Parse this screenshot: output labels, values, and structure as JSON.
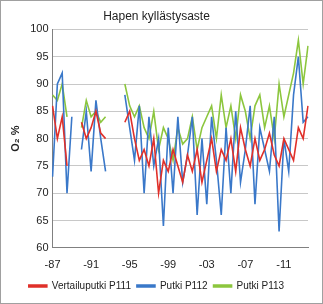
{
  "chart_data": {
    "type": "line",
    "title": "Hapen kyllästysaste",
    "y_label": "O₂ %",
    "categories": [
      "-87",
      null,
      null,
      null,
      null,
      null,
      null,
      null,
      "-91",
      null,
      null,
      null,
      null,
      null,
      null,
      null,
      "-95",
      null,
      null,
      null,
      null,
      null,
      null,
      null,
      "-99",
      null,
      null,
      null,
      null,
      null,
      null,
      null,
      "-03",
      null,
      null,
      null,
      null,
      null,
      null,
      null,
      "-07",
      null,
      null,
      null,
      null,
      null,
      null,
      null,
      "-11",
      null,
      null,
      null,
      null,
      null
    ],
    "series": [
      {
        "name": "Vertailuputki P111",
        "color": "#e0302a",
        "values": [
          86,
          80,
          84,
          75,
          null,
          null,
          83,
          80,
          82,
          85,
          81,
          80,
          null,
          null,
          null,
          83,
          85,
          80,
          76,
          78,
          75,
          80,
          70,
          76,
          74,
          78,
          75,
          72,
          77,
          74,
          78,
          72,
          76,
          80,
          74,
          78,
          76,
          80,
          74,
          82,
          78,
          75,
          80,
          76,
          78,
          81,
          77,
          75,
          80,
          78,
          76,
          82,
          80,
          86
        ]
      },
      {
        "name": "Putki P112",
        "color": "#3a78c9",
        "values": [
          73,
          90,
          92,
          70,
          84,
          null,
          78,
          85,
          74,
          87,
          80,
          74,
          null,
          null,
          null,
          88,
          82,
          76,
          86,
          70,
          84,
          75,
          80,
          64,
          82,
          70,
          84,
          72,
          77,
          84,
          66,
          80,
          68,
          84,
          76,
          66,
          82,
          70,
          85,
          72,
          78,
          86,
          68,
          82,
          78,
          74,
          84,
          63,
          80,
          74,
          88,
          95,
          83,
          84
        ]
      },
      {
        "name": "Putki P113",
        "color": "#8cc63e",
        "values": [
          88,
          87,
          90,
          84,
          null,
          null,
          82,
          87,
          84,
          85,
          83,
          84,
          null,
          null,
          null,
          90,
          86,
          84,
          86,
          82,
          80,
          85,
          78,
          82,
          80,
          76,
          82,
          79,
          80,
          84,
          78,
          82,
          84,
          86,
          80,
          88,
          82,
          86,
          80,
          88,
          85,
          80,
          86,
          88,
          82,
          86,
          80,
          90,
          84,
          88,
          92,
          98,
          90,
          97
        ]
      }
    ],
    "ylim": [
      60,
      100
    ],
    "yticks": [
      60,
      65,
      70,
      75,
      80,
      85,
      90,
      95,
      100
    ],
    "grid": true,
    "legend": "bottom"
  }
}
